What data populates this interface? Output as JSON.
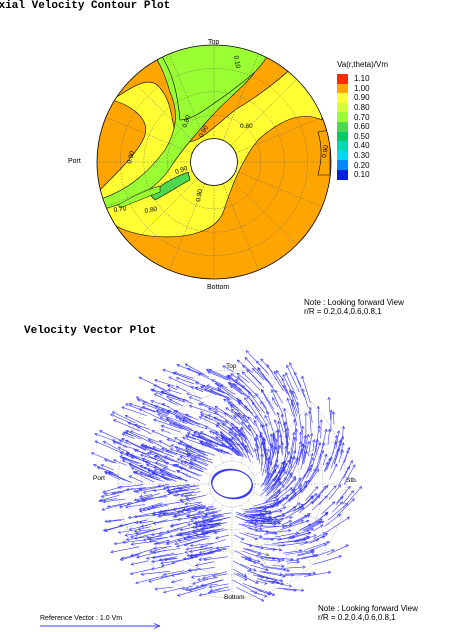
{
  "figures": {
    "contour": {
      "title": "Axial Velocity Contour Plot",
      "labels": {
        "top": "Top",
        "port": "Port",
        "bottom": "Bottom"
      },
      "note": {
        "line1": "Note : Looking forward View",
        "line2": "r/R = 0.2,0.4,0.6,0.8,1"
      },
      "legend_title": "Va(r,theta)/Vm"
    },
    "vector": {
      "title": "Velocity Vector Plot",
      "labels": {
        "top": "Top",
        "port": "Port",
        "stb": "Stb.",
        "bottom": "Bottom"
      },
      "note": {
        "line1": "Note : Looking forward View",
        "line2": "r/R = 0.2,0.4,0.6,0.8,1"
      },
      "reference": "Reference Vector : 1.0 Vm",
      "vector_color": "#3a3aff"
    }
  },
  "chart_data": [
    {
      "type": "contour",
      "title": "Axial Velocity Contour Plot",
      "colorbar_label": "Va(r,theta)/Vm",
      "levels": [
        {
          "value": 1.1,
          "color": "#ff2a00"
        },
        {
          "value": 1.0,
          "color": "#ffa500"
        },
        {
          "value": 0.9,
          "color": "#ffff33"
        },
        {
          "value": 0.8,
          "color": "#d4ff33"
        },
        {
          "value": 0.7,
          "color": "#99ff33"
        },
        {
          "value": 0.6,
          "color": "#4dd94d"
        },
        {
          "value": 0.5,
          "color": "#00cc66"
        },
        {
          "value": 0.4,
          "color": "#00d9b3"
        },
        {
          "value": 0.3,
          "color": "#00d9f2"
        },
        {
          "value": 0.2,
          "color": "#0088ff"
        },
        {
          "value": 0.1,
          "color": "#0020e0"
        }
      ],
      "radii": [
        0.2,
        0.4,
        0.6,
        0.8,
        1.0
      ],
      "contour_labels": [
        "0.10",
        "0.80",
        "0.90",
        "0.80",
        "0.90",
        "0.90",
        "0.90",
        "0.70",
        "0.80",
        "0.90"
      ]
    },
    {
      "type": "vector",
      "title": "Velocity Vector Plot",
      "radii": [
        0.2,
        0.4,
        0.6,
        0.8,
        1.0
      ],
      "reference_vector": 1.0
    }
  ]
}
